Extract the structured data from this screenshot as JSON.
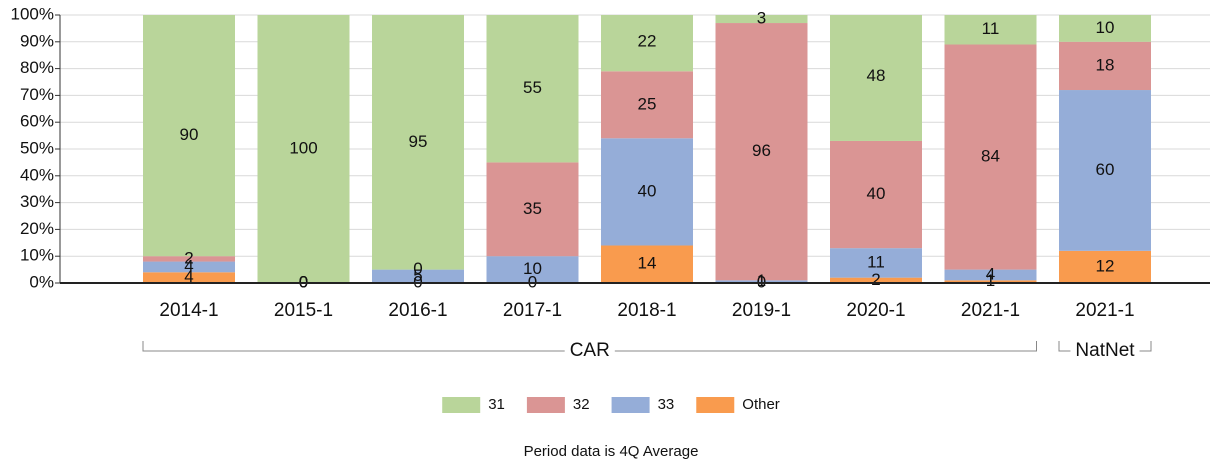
{
  "chart_data": {
    "type": "bar",
    "stacked": true,
    "note": "Period data is 4Q Average",
    "categories": [
      "2014-1",
      "2015-1",
      "2016-1",
      "2017-1",
      "2018-1",
      "2019-1",
      "2020-1",
      "2021-1",
      "2021-1"
    ],
    "groups": [
      {
        "name": "CAR",
        "size": 8
      },
      {
        "name": "NatNet",
        "size": 1
      }
    ],
    "series": [
      {
        "name": "Other",
        "color": "#f99b4e",
        "values": [
          4,
          0,
          0,
          0,
          14,
          0,
          2,
          1,
          12
        ]
      },
      {
        "name": "33",
        "color": "#95add8",
        "values": [
          4,
          0,
          5,
          10,
          40,
          1,
          11,
          4,
          60
        ]
      },
      {
        "name": "32",
        "color": "#da9594",
        "values": [
          2,
          0,
          0,
          35,
          25,
          96,
          40,
          84,
          18
        ]
      },
      {
        "name": "31",
        "color": "#b9d59a",
        "values": [
          90,
          100,
          95,
          55,
          22,
          3,
          48,
          11,
          10
        ]
      }
    ],
    "ylim": [
      0,
      100
    ],
    "yticks": [
      {
        "value": 0,
        "label": "0%"
      },
      {
        "value": 10,
        "label": "10%"
      },
      {
        "value": 20,
        "label": "20%"
      },
      {
        "value": 30,
        "label": "30%"
      },
      {
        "value": 40,
        "label": "40%"
      },
      {
        "value": 50,
        "label": "50%"
      },
      {
        "value": 60,
        "label": "60%"
      },
      {
        "value": 70,
        "label": "70%"
      },
      {
        "value": 80,
        "label": "80%"
      },
      {
        "value": 90,
        "label": "90%"
      },
      {
        "value": 100,
        "label": "100%"
      }
    ],
    "grid": true
  }
}
